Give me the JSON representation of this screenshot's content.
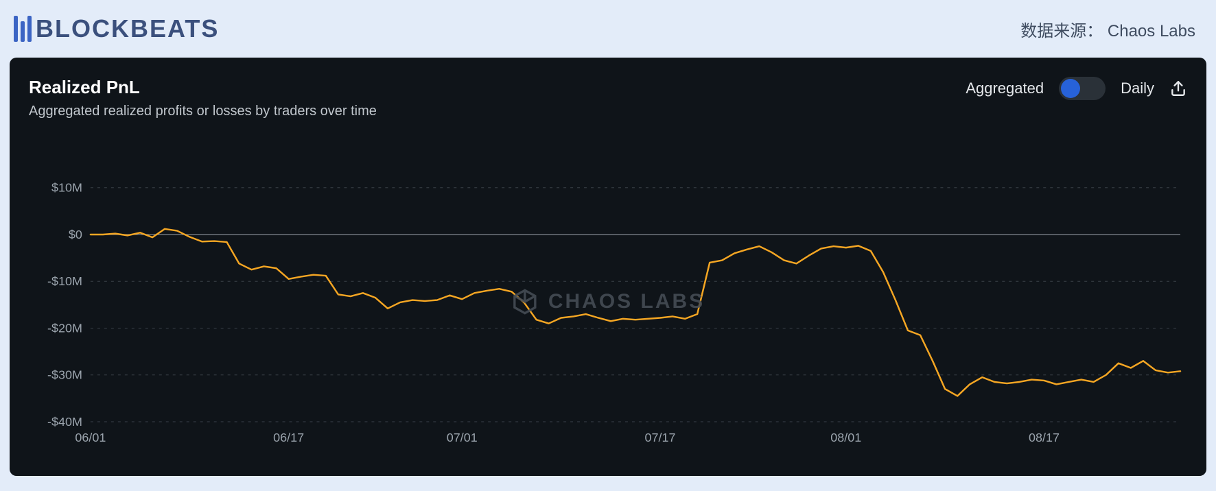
{
  "header": {
    "logo_text": "BLOCKBEATS",
    "source_label": "数据来源：",
    "source_name": "Chaos Labs"
  },
  "panel": {
    "title": "Realized PnL",
    "subtitle": "Aggregated realized profits or losses by traders over time",
    "controls": {
      "left_label": "Aggregated",
      "right_label": "Daily",
      "toggle_state": "left"
    },
    "watermark": "CHAOS LABS",
    "colors": {
      "panel_bg": "#0f1419",
      "page_bg": "#e3ecf9",
      "text_primary": "#ffffff",
      "text_secondary": "#c0c6cc",
      "axis_label": "#9aa3ac",
      "gridline": "#3a4149",
      "zeroline": "#808890",
      "series": "#f5a623",
      "toggle_track": "#2a3138",
      "toggle_knob": "#2762d9",
      "logo_bars": "#3b64c4",
      "logo_text": "#3b507d"
    },
    "chart": {
      "type": "line",
      "y_axis": {
        "min": -40,
        "max": 10,
        "ticks": [
          10,
          0,
          -10,
          -20,
          -30,
          -40
        ],
        "tick_labels": [
          "$10M",
          "$0",
          "-$10M",
          "-$20M",
          "-$30M",
          "-$40M"
        ],
        "unit": "M USD"
      },
      "x_axis": {
        "ticks": [
          0,
          16,
          30,
          46,
          61,
          77
        ],
        "tick_labels": [
          "06/01",
          "06/17",
          "07/01",
          "07/17",
          "08/01",
          "08/17"
        ],
        "range_days": 88
      },
      "series": [
        {
          "name": "Aggregated Realized PnL",
          "color": "#f5a623",
          "points": [
            [
              0,
              0.0
            ],
            [
              1,
              0.0
            ],
            [
              2,
              0.2
            ],
            [
              3,
              -0.2
            ],
            [
              4,
              0.4
            ],
            [
              5,
              -0.6
            ],
            [
              6,
              1.2
            ],
            [
              7,
              0.8
            ],
            [
              8,
              -0.5
            ],
            [
              9,
              -1.5
            ],
            [
              10,
              -1.4
            ],
            [
              11,
              -1.6
            ],
            [
              12,
              -6.2
            ],
            [
              13,
              -7.5
            ],
            [
              14,
              -6.8
            ],
            [
              15,
              -7.2
            ],
            [
              16,
              -9.5
            ],
            [
              17,
              -9.0
            ],
            [
              18,
              -8.6
            ],
            [
              19,
              -8.8
            ],
            [
              20,
              -12.8
            ],
            [
              21,
              -13.2
            ],
            [
              22,
              -12.5
            ],
            [
              23,
              -13.5
            ],
            [
              24,
              -15.8
            ],
            [
              25,
              -14.5
            ],
            [
              26,
              -14.0
            ],
            [
              27,
              -14.2
            ],
            [
              28,
              -14.0
            ],
            [
              29,
              -13.0
            ],
            [
              30,
              -13.8
            ],
            [
              31,
              -12.5
            ],
            [
              32,
              -12.0
            ],
            [
              33,
              -11.6
            ],
            [
              34,
              -12.2
            ],
            [
              35,
              -14.5
            ],
            [
              36,
              -18.2
            ],
            [
              37,
              -19.0
            ],
            [
              38,
              -17.8
            ],
            [
              39,
              -17.5
            ],
            [
              40,
              -17.0
            ],
            [
              41,
              -17.8
            ],
            [
              42,
              -18.5
            ],
            [
              43,
              -18.0
            ],
            [
              44,
              -18.2
            ],
            [
              45,
              -18.0
            ],
            [
              46,
              -17.8
            ],
            [
              47,
              -17.5
            ],
            [
              48,
              -18.0
            ],
            [
              49,
              -17.0
            ],
            [
              50,
              -6.0
            ],
            [
              51,
              -5.5
            ],
            [
              52,
              -4.0
            ],
            [
              53,
              -3.2
            ],
            [
              54,
              -2.5
            ],
            [
              55,
              -3.8
            ],
            [
              56,
              -5.5
            ],
            [
              57,
              -6.2
            ],
            [
              58,
              -4.5
            ],
            [
              59,
              -3.0
            ],
            [
              60,
              -2.5
            ],
            [
              61,
              -2.8
            ],
            [
              62,
              -2.4
            ],
            [
              63,
              -3.5
            ],
            [
              64,
              -8.0
            ],
            [
              65,
              -14.0
            ],
            [
              66,
              -20.5
            ],
            [
              67,
              -21.5
            ],
            [
              68,
              -27.0
            ],
            [
              69,
              -33.0
            ],
            [
              70,
              -34.5
            ],
            [
              71,
              -32.0
            ],
            [
              72,
              -30.5
            ],
            [
              73,
              -31.5
            ],
            [
              74,
              -31.8
            ],
            [
              75,
              -31.5
            ],
            [
              76,
              -31.0
            ],
            [
              77,
              -31.2
            ],
            [
              78,
              -32.0
            ],
            [
              79,
              -31.5
            ],
            [
              80,
              -31.0
            ],
            [
              81,
              -31.5
            ],
            [
              82,
              -30.0
            ],
            [
              83,
              -27.5
            ],
            [
              84,
              -28.5
            ],
            [
              85,
              -27.0
            ],
            [
              86,
              -29.0
            ],
            [
              87,
              -29.5
            ],
            [
              88,
              -29.2
            ]
          ]
        }
      ]
    }
  }
}
